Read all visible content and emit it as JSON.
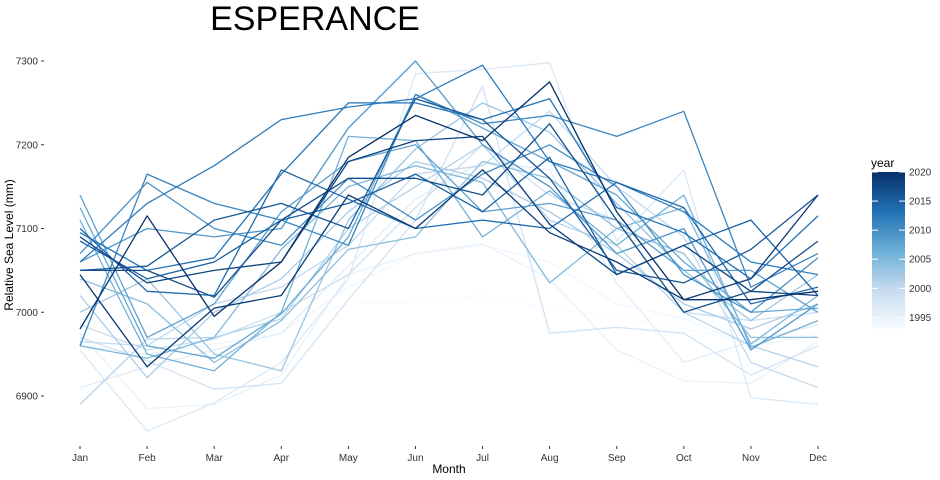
{
  "chart_data": {
    "type": "line",
    "title": "ESPERANCE",
    "xlabel": "Month",
    "ylabel": "Relative Sea Level (mm)",
    "categories": [
      "Jan",
      "Feb",
      "Mar",
      "Apr",
      "May",
      "Jun",
      "Jul",
      "Aug",
      "Sep",
      "Oct",
      "Nov",
      "Dec"
    ],
    "y_ticks": [
      6900,
      7000,
      7100,
      7200,
      7300
    ],
    "ylim": [
      6845,
      7315
    ],
    "grid": false,
    "legend": {
      "title": "year",
      "placement": "right",
      "type": "colorbar",
      "min": 1993,
      "max": 2020,
      "ticks": [
        1995,
        2000,
        2005,
        2010,
        2015,
        2020
      ],
      "color_low": "#f7fbff",
      "color_high": "#08306b"
    },
    "series": [
      {
        "year": 1993,
        "values": [
          6990,
          6982,
          6975,
          6985,
          7010,
          7012,
          7020,
          7005,
          6995,
          6980,
          6965,
          6975
        ]
      },
      {
        "year": 1994,
        "values": [
          6960,
          6950,
          6962,
          6975,
          7030,
          7070,
          7080,
          7060,
          7010,
          6992,
          6960,
          6972
        ]
      },
      {
        "year": 1995,
        "values": [
          6975,
          6885,
          6890,
          6925,
          7045,
          7070,
          7082,
          7040,
          6955,
          6918,
          6915,
          6965
        ]
      },
      {
        "year": 1996,
        "values": [
          6910,
          6935,
          6955,
          6975,
          7055,
          7135,
          7180,
          7170,
          7035,
          6940,
          6965,
          6985
        ]
      },
      {
        "year": 1997,
        "values": [
          6955,
          6858,
          6892,
          6940,
          7040,
          7285,
          7290,
          7298,
          7085,
          7170,
          6898,
          6890
        ]
      },
      {
        "year": 1998,
        "values": [
          6970,
          6942,
          6908,
          6915,
          7015,
          7110,
          7270,
          6975,
          6982,
          6975,
          6925,
          6960
        ]
      },
      {
        "year": 1999,
        "values": [
          6985,
          6955,
          6968,
          7000,
          7045,
          7125,
          7200,
          7140,
          7110,
          7000,
          6990,
          7000
        ]
      },
      {
        "year": 2000,
        "values": [
          6965,
          6960,
          7010,
          7030,
          7080,
          7165,
          7175,
          7240,
          7150,
          7090,
          6940,
          6910
        ]
      },
      {
        "year": 2001,
        "values": [
          6890,
          6968,
          6970,
          6992,
          7100,
          7150,
          7200,
          7110,
          7080,
          7000,
          6960,
          6935
        ]
      },
      {
        "year": 2002,
        "values": [
          7020,
          6922,
          7000,
          7040,
          7120,
          7180,
          7160,
          7120,
          7070,
          7010,
          6980,
          7010
        ]
      },
      {
        "year": 2003,
        "values": [
          7000,
          7040,
          6950,
          6930,
          7110,
          7195,
          7250,
          7215,
          7130,
          7050,
          6990,
          7045
        ]
      },
      {
        "year": 2004,
        "values": [
          7040,
          7010,
          6940,
          6990,
          7075,
          7090,
          7180,
          7160,
          7100,
          7070,
          6970,
          6970
        ]
      },
      {
        "year": 2005,
        "values": [
          6960,
          6945,
          6970,
          7075,
          7150,
          7175,
          7155,
          7035,
          7100,
          7125,
          6962,
          7020
        ]
      },
      {
        "year": 2006,
        "values": [
          7110,
          6950,
          6930,
          7000,
          7210,
          7205,
          7090,
          7145,
          7080,
          7140,
          6958,
          6990
        ]
      },
      {
        "year": 2007,
        "values": [
          7125,
          6960,
          6945,
          6998,
          7090,
          7260,
          7220,
          7180,
          7140,
          7060,
          7000,
          7005
        ]
      },
      {
        "year": 2008,
        "values": [
          7140,
          6970,
          7010,
          7120,
          7180,
          7200,
          7120,
          7130,
          7110,
          7050,
          7050,
          7000
        ]
      },
      {
        "year": 2009,
        "values": [
          7060,
          7100,
          7090,
          7100,
          7220,
          7300,
          7200,
          7150,
          7070,
          7100,
          6955,
          7010
        ]
      },
      {
        "year": 2010,
        "values": [
          7070,
          7155,
          7100,
          7080,
          7160,
          7110,
          7165,
          7200,
          7150,
          7045,
          7000,
          7065
        ]
      },
      {
        "year": 2011,
        "values": [
          6960,
          7165,
          7130,
          7110,
          7080,
          7260,
          7225,
          7235,
          7210,
          7240,
          7030,
          7070
        ]
      },
      {
        "year": 2012,
        "values": [
          7060,
          7130,
          7175,
          7230,
          7245,
          7255,
          7295,
          7180,
          7155,
          7120,
          7060,
          7045
        ]
      },
      {
        "year": 2013,
        "values": [
          7095,
          7050,
          7065,
          7165,
          7250,
          7250,
          7230,
          7255,
          7125,
          7095,
          7040,
          7115
        ]
      },
      {
        "year": 2014,
        "values": [
          7100,
          7025,
          7020,
          7170,
          7135,
          7100,
          7110,
          7100,
          7155,
          7125,
          7010,
          7030
        ]
      },
      {
        "year": 2015,
        "values": [
          7085,
          7040,
          7060,
          7110,
          7130,
          7165,
          7120,
          7185,
          7045,
          7080,
          7110,
          7020
        ]
      },
      {
        "year": 2016,
        "values": [
          7050,
          7055,
          7110,
          7130,
          7100,
          7255,
          7230,
          7160,
          7050,
          7035,
          7075,
          7140
        ]
      },
      {
        "year": 2017,
        "values": [
          7050,
          7050,
          7018,
          7110,
          7160,
          7160,
          7140,
          7225,
          7110,
          7000,
          7025,
          7085
        ]
      },
      {
        "year": 2018,
        "values": [
          7090,
          7035,
          7050,
          7060,
          7180,
          7205,
          7210,
          7105,
          7045,
          7080,
          7025,
          7020
        ]
      },
      {
        "year": 2019,
        "values": [
          7045,
          6935,
          7005,
          7020,
          7140,
          7100,
          7170,
          7095,
          7060,
          7015,
          7040,
          7140
        ]
      },
      {
        "year": 2020,
        "values": [
          6980,
          7115,
          6995,
          7060,
          7185,
          7235,
          7205,
          7275,
          7120,
          7015,
          7015,
          7025
        ]
      }
    ]
  }
}
